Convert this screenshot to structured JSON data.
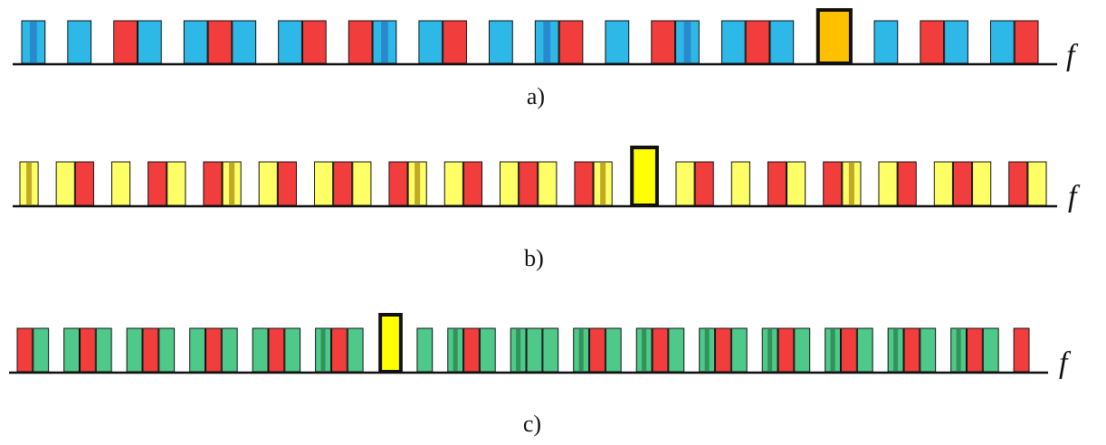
{
  "axis_symbol": "f",
  "palette": {
    "red": "#f23d3d",
    "blue": "#2db8e8",
    "dark_blue": "#2a7fc8",
    "yellow_light": "#ffff66",
    "yellow": "#ffff00",
    "orange": "#ffc000",
    "dark_yellow": "#b59a1a",
    "green": "#4ec98a",
    "dark_green": "#2d8a50",
    "outline": "#111111"
  },
  "panels": [
    {
      "label": "a)",
      "main": "blue",
      "overlap": "dark_blue",
      "highlight": "orange",
      "items": [
        {
          "t": "mix"
        },
        {
          "t": "gap"
        },
        {
          "t": "main"
        },
        {
          "t": "gap"
        },
        {
          "t": "red"
        },
        {
          "t": "main"
        },
        {
          "t": "gap"
        },
        {
          "t": "main"
        },
        {
          "t": "red"
        },
        {
          "t": "main"
        },
        {
          "t": "gap"
        },
        {
          "t": "main"
        },
        {
          "t": "red"
        },
        {
          "t": "gap"
        },
        {
          "t": "red"
        },
        {
          "t": "mix"
        },
        {
          "t": "gap"
        },
        {
          "t": "main"
        },
        {
          "t": "red"
        },
        {
          "t": "gap"
        },
        {
          "t": "main"
        },
        {
          "t": "gap"
        },
        {
          "t": "mix"
        },
        {
          "t": "red"
        },
        {
          "t": "gap"
        },
        {
          "t": "main"
        },
        {
          "t": "gap"
        },
        {
          "t": "red"
        },
        {
          "t": "mix"
        },
        {
          "t": "gap"
        },
        {
          "t": "main"
        },
        {
          "t": "red"
        },
        {
          "t": "main"
        },
        {
          "t": "gap"
        },
        {
          "t": "hl"
        },
        {
          "t": "gap"
        },
        {
          "t": "main"
        },
        {
          "t": "gap"
        },
        {
          "t": "red"
        },
        {
          "t": "main"
        },
        {
          "t": "gap"
        },
        {
          "t": "main"
        },
        {
          "t": "red"
        }
      ]
    },
    {
      "label": "b)",
      "main": "yellow_light",
      "overlap": "dark_yellow",
      "highlight": "yellow",
      "items": [
        {
          "t": "mix"
        },
        {
          "t": "gap"
        },
        {
          "t": "main"
        },
        {
          "t": "red"
        },
        {
          "t": "gap"
        },
        {
          "t": "main"
        },
        {
          "t": "gap"
        },
        {
          "t": "red"
        },
        {
          "t": "main"
        },
        {
          "t": "gap"
        },
        {
          "t": "red"
        },
        {
          "t": "mix"
        },
        {
          "t": "gap"
        },
        {
          "t": "main"
        },
        {
          "t": "red"
        },
        {
          "t": "gap"
        },
        {
          "t": "main"
        },
        {
          "t": "red"
        },
        {
          "t": "main"
        },
        {
          "t": "gap"
        },
        {
          "t": "red"
        },
        {
          "t": "mix"
        },
        {
          "t": "gap"
        },
        {
          "t": "main"
        },
        {
          "t": "red"
        },
        {
          "t": "gap"
        },
        {
          "t": "main"
        },
        {
          "t": "red"
        },
        {
          "t": "main"
        },
        {
          "t": "gap"
        },
        {
          "t": "red"
        },
        {
          "t": "mix"
        },
        {
          "t": "gap"
        },
        {
          "t": "hl"
        },
        {
          "t": "gap"
        },
        {
          "t": "main"
        },
        {
          "t": "red"
        },
        {
          "t": "gap"
        },
        {
          "t": "main"
        },
        {
          "t": "gap"
        },
        {
          "t": "red"
        },
        {
          "t": "main"
        },
        {
          "t": "gap"
        },
        {
          "t": "red"
        },
        {
          "t": "mix"
        },
        {
          "t": "gap"
        },
        {
          "t": "main"
        },
        {
          "t": "red"
        },
        {
          "t": "gap"
        },
        {
          "t": "main"
        },
        {
          "t": "red"
        },
        {
          "t": "main"
        },
        {
          "t": "gap"
        },
        {
          "t": "red"
        },
        {
          "t": "main"
        }
      ]
    },
    {
      "label": "c)",
      "main": "green",
      "overlap": "dark_green",
      "highlight": "yellow",
      "items": [
        {
          "t": "red"
        },
        {
          "t": "main"
        },
        {
          "t": "gap"
        },
        {
          "t": "main"
        },
        {
          "t": "red"
        },
        {
          "t": "main"
        },
        {
          "t": "gap"
        },
        {
          "t": "main"
        },
        {
          "t": "red"
        },
        {
          "t": "main"
        },
        {
          "t": "gap"
        },
        {
          "t": "main"
        },
        {
          "t": "red"
        },
        {
          "t": "main"
        },
        {
          "t": "gap"
        },
        {
          "t": "main"
        },
        {
          "t": "red"
        },
        {
          "t": "main"
        },
        {
          "t": "gap"
        },
        {
          "t": "mix"
        },
        {
          "t": "red"
        },
        {
          "t": "main"
        },
        {
          "t": "gap"
        },
        {
          "t": "hl"
        },
        {
          "t": "gap"
        },
        {
          "t": "main"
        },
        {
          "t": "gap"
        },
        {
          "t": "mix"
        },
        {
          "t": "red"
        },
        {
          "t": "main"
        },
        {
          "t": "gap"
        },
        {
          "t": "mix"
        },
        {
          "t": "main"
        },
        {
          "t": "main"
        },
        {
          "t": "gap"
        },
        {
          "t": "mix"
        },
        {
          "t": "red"
        },
        {
          "t": "main"
        },
        {
          "t": "gap"
        },
        {
          "t": "mix"
        },
        {
          "t": "red"
        },
        {
          "t": "main"
        },
        {
          "t": "gap"
        },
        {
          "t": "mix"
        },
        {
          "t": "red"
        },
        {
          "t": "main"
        },
        {
          "t": "gap"
        },
        {
          "t": "mix"
        },
        {
          "t": "red"
        },
        {
          "t": "main"
        },
        {
          "t": "gap"
        },
        {
          "t": "mix"
        },
        {
          "t": "red"
        },
        {
          "t": "main"
        },
        {
          "t": "gap"
        },
        {
          "t": "mix"
        },
        {
          "t": "red"
        },
        {
          "t": "main"
        },
        {
          "t": "gap"
        },
        {
          "t": "mix"
        },
        {
          "t": "red"
        },
        {
          "t": "main"
        },
        {
          "t": "gap"
        },
        {
          "t": "red"
        }
      ]
    }
  ]
}
